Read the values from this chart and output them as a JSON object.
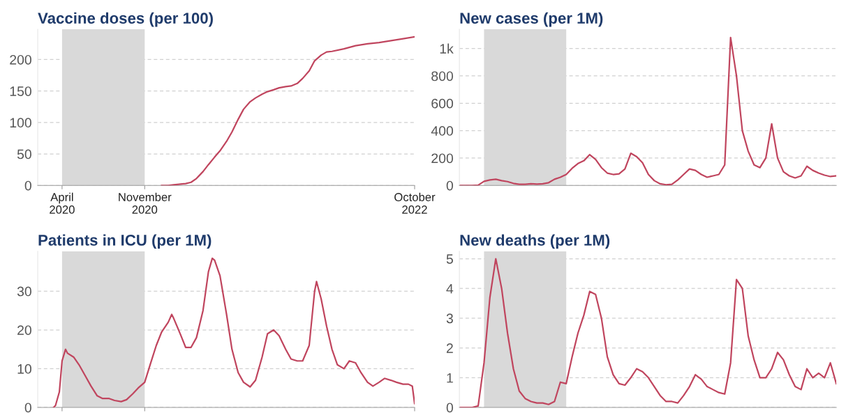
{
  "chart_data": [
    {
      "type": "line",
      "title": "Vaccine doses (per 100)",
      "xlim": [
        "2020-01-29",
        "2022-10-01"
      ],
      "ylim": [
        0,
        248
      ],
      "yticks": [
        0,
        50,
        100,
        150,
        200
      ],
      "xticks": [
        {
          "value": "2020-04-01",
          "label": "April\n2020"
        },
        {
          "value": "2020-11-01",
          "label": "November\n2020"
        },
        {
          "value": "2022-10-01",
          "label": "October\n2022"
        }
      ],
      "grid": "y",
      "bands": [
        {
          "axis": "x",
          "from": "2020-04-01",
          "to": "2020-11-01",
          "color": "#d9d9d9"
        }
      ],
      "series": [
        {
          "color": "#c0455e",
          "x": [
            "2020-12-15",
            "2021-01-01",
            "2021-01-15",
            "2021-02-01",
            "2021-02-15",
            "2021-03-01",
            "2021-03-15",
            "2021-04-01",
            "2021-04-15",
            "2021-05-01",
            "2021-05-15",
            "2021-06-01",
            "2021-06-15",
            "2021-07-01",
            "2021-07-15",
            "2021-08-01",
            "2021-08-15",
            "2021-09-01",
            "2021-09-15",
            "2021-10-01",
            "2021-10-15",
            "2021-11-01",
            "2021-11-15",
            "2021-12-01",
            "2021-12-15",
            "2022-01-01",
            "2022-01-15",
            "2022-02-01",
            "2022-02-15",
            "2022-03-01",
            "2022-04-01",
            "2022-05-01",
            "2022-06-01",
            "2022-07-01",
            "2022-08-01",
            "2022-09-01",
            "2022-10-01"
          ],
          "values": [
            0,
            0,
            1,
            2,
            3,
            5,
            11,
            22,
            33,
            45,
            55,
            70,
            85,
            105,
            121,
            133,
            139,
            145,
            149,
            152,
            155,
            157,
            158,
            162,
            170,
            182,
            198,
            207,
            212,
            213,
            217,
            222,
            225,
            227,
            230,
            233,
            236
          ]
        }
      ]
    },
    {
      "type": "line",
      "title": "New cases (per 1M)",
      "ylim": [
        0,
        1140
      ],
      "yticks": [
        0,
        200,
        400,
        600,
        800,
        {
          "value": 1000,
          "label": "1k"
        }
      ],
      "categories": [
        null,
        null,
        null,
        null,
        null,
        null,
        null,
        null,
        null,
        null,
        null,
        null,
        null,
        null,
        null,
        null,
        null,
        null,
        null,
        null,
        null,
        null,
        null,
        null,
        null,
        null,
        null,
        null,
        null,
        null,
        null,
        null,
        null,
        null,
        null,
        null,
        null,
        null,
        null,
        null,
        null,
        null,
        null,
        null,
        null,
        null,
        null,
        null,
        null,
        null,
        null,
        null,
        null,
        null,
        null,
        null,
        null,
        null,
        null,
        null,
        null,
        null,
        null,
        null,
        null
      ],
      "tick_labels": "y",
      "grid": "y",
      "series": [
        {
          "color": "#c0455e",
          "values": [
            0,
            0,
            0,
            2,
            30,
            40,
            45,
            35,
            28,
            15,
            8,
            8,
            12,
            10,
            12,
            20,
            45,
            60,
            80,
            125,
            160,
            180,
            225,
            190,
            130,
            90,
            80,
            85,
            120,
            235,
            210,
            165,
            80,
            35,
            12,
            5,
            8,
            40,
            80,
            120,
            110,
            80,
            60,
            70,
            80,
            150,
            1080,
            800,
            400,
            250,
            150,
            130,
            200,
            450,
            200,
            100,
            70,
            55,
            70,
            140,
            110,
            90,
            75,
            65,
            70
          ]
        }
      ]
    },
    {
      "type": "line",
      "title": "Patients in ICU (per 1M)",
      "xlim": [
        "2020-01-29",
        "2022-10-01"
      ],
      "ylim": [
        0,
        40.3
      ],
      "yticks": [
        0,
        10,
        20,
        30
      ],
      "xticks": [
        {
          "value": "2020-04-01",
          "label": null
        },
        {
          "value": "2020-11-01",
          "label": null
        },
        {
          "value": "2022-10-01",
          "label": null
        }
      ],
      "tick_labels": "y",
      "grid": "y",
      "bands": [
        {
          "axis": "x",
          "from": "2020-04-01",
          "to": "2020-11-01",
          "color": "#d9d9d9"
        }
      ],
      "series": [
        {
          "color": "#c0455e",
          "x": [
            "2020-03-10",
            "2020-03-15",
            "2020-03-25",
            "2020-04-01",
            "2020-04-10",
            "2020-04-15",
            "2020-05-01",
            "2020-05-15",
            "2020-06-01",
            "2020-06-15",
            "2020-07-01",
            "2020-07-15",
            "2020-08-01",
            "2020-08-15",
            "2020-09-01",
            "2020-09-15",
            "2020-10-01",
            "2020-10-15",
            "2020-11-01",
            "2020-11-15",
            "2020-12-01",
            "2020-12-15",
            "2021-01-01",
            "2021-01-10",
            "2021-01-15",
            "2021-02-01",
            "2021-02-15",
            "2021-03-01",
            "2021-03-15",
            "2021-04-01",
            "2021-04-15",
            "2021-04-25",
            "2021-05-01",
            "2021-05-15",
            "2021-06-01",
            "2021-06-15",
            "2021-07-01",
            "2021-07-15",
            "2021-08-01",
            "2021-08-15",
            "2021-09-01",
            "2021-09-15",
            "2021-10-01",
            "2021-10-15",
            "2021-11-01",
            "2021-11-15",
            "2021-12-01",
            "2021-12-15",
            "2022-01-01",
            "2022-01-15",
            "2022-01-20",
            "2022-02-01",
            "2022-02-15",
            "2022-03-01",
            "2022-03-15",
            "2022-04-01",
            "2022-04-15",
            "2022-05-01",
            "2022-05-15",
            "2022-06-01",
            "2022-06-15",
            "2022-07-01",
            "2022-07-15",
            "2022-08-01",
            "2022-08-15",
            "2022-09-01",
            "2022-09-15",
            "2022-09-25",
            "2022-10-01"
          ],
          "values": [
            0,
            0.5,
            4,
            12,
            15,
            14,
            13,
            11,
            8,
            5.5,
            3,
            2.3,
            2.3,
            1.8,
            1.5,
            2,
            3.5,
            5,
            6.5,
            11,
            16,
            19.5,
            22,
            24,
            23,
            19,
            15.5,
            15.5,
            18,
            25,
            35,
            38.5,
            38,
            34,
            24,
            15,
            9,
            6.5,
            5.3,
            7,
            13,
            19,
            20,
            18.5,
            15,
            12.5,
            12,
            12,
            16,
            30,
            32.5,
            28,
            21,
            15,
            11,
            10,
            12,
            11.5,
            9,
            6.5,
            5.5,
            6.5,
            7.5,
            7,
            6.5,
            6,
            6,
            5.5,
            1
          ]
        }
      ]
    },
    {
      "type": "line",
      "title": "New deaths (per 1M)",
      "ylim": [
        0,
        5.25
      ],
      "yticks": [
        0,
        1,
        2,
        3,
        4,
        5
      ],
      "categories": [
        null,
        null,
        null,
        null,
        null,
        null,
        null,
        null,
        null,
        null,
        null,
        null,
        null,
        null,
        null,
        null,
        null,
        null,
        null,
        null,
        null,
        null,
        null,
        null,
        null,
        null,
        null,
        null,
        null,
        null,
        null,
        null,
        null,
        null,
        null,
        null,
        null,
        null,
        null,
        null,
        null,
        null,
        null,
        null,
        null,
        null,
        null,
        null,
        null,
        null,
        null,
        null,
        null,
        null,
        null,
        null,
        null,
        null,
        null,
        null,
        null,
        null,
        null,
        null,
        null
      ],
      "tick_labels": "y",
      "grid": "y",
      "series": [
        {
          "color": "#c0455e",
          "values": [
            0,
            0,
            0,
            0.05,
            1.5,
            3.7,
            5.0,
            4.0,
            2.5,
            1.3,
            0.55,
            0.3,
            0.2,
            0.15,
            0.15,
            0.1,
            0.2,
            0.85,
            0.8,
            1.7,
            2.5,
            3.1,
            3.9,
            3.8,
            3.0,
            1.7,
            1.1,
            0.8,
            0.75,
            1.0,
            1.3,
            1.2,
            1.0,
            0.7,
            0.4,
            0.2,
            0.2,
            0.15,
            0.4,
            0.7,
            1.1,
            0.95,
            0.7,
            0.6,
            0.5,
            0.45,
            1.5,
            4.3,
            4.0,
            2.4,
            1.6,
            1.0,
            1.0,
            1.3,
            1.85,
            1.6,
            1.1,
            0.7,
            0.6,
            1.3,
            1.0,
            1.15,
            1.0,
            1.5,
            0.8
          ]
        }
      ]
    }
  ]
}
